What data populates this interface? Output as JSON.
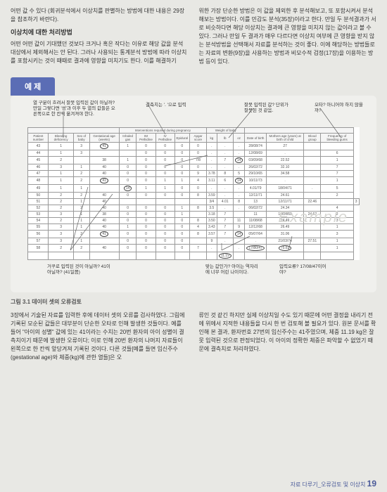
{
  "top": {
    "left_p1": "어떤 값 수 있다 (회귀분석에서 이상치를 판별하는 방법에 대한 내용은 29장을 참조하기 바란다).",
    "left_title": "이상치에 대한 처리방법",
    "left_p2": "어떤 어떤 값이 기대했던 것보다 크거나 혹은 작다는 이유로 해당 값을 분석 대상에서 제외해서는 안 된다. 그러나 사용되는 통계분석 방법에 따라 이상치를 포함시키는 것이 때때로 결과에 영향을 미치기도 한다. 이를 해결하기",
    "right_p1": "위한 가장 단순한 방법은 이 값을 제외한 후 분석해보고, 또 포함시켜서 분석해보는 방법이다. 이를 민감도 분석(35장)이라고 한다. 만일 두 분석결과가 서로 비슷하다면 해당 이상치는 결과에 큰 영향을 미치지 않는 값이라고 볼 수 있다. 그러나 만일 두 결과가 매우 다르다면 이상치 여부에 큰 영향을 받지 않는 분석방법을 선택해서 자료를 분석하는 것이 좋다. 이에 해당하는 방법들로는 자료의 변환(9장)을 사용하는 방법과 비모수적 검정(17장)을 이용하는 방법 등이 있다."
  },
  "example": {
    "tab": "예 제",
    "watermark": "Example",
    "annot1": "열 구분이 흐려서 잘못 입력된 값이 아닐까? 만일 그렇다면 '성'과 이후 두 열의 값들은 오른쪽으로 한 칸씩 옮겨져야 한다.",
    "annot2": "결측치는 '. '으로 입력",
    "annot3": "잘못 입력된 값? 단위가 잘못된 것 같음.",
    "annot4": "오타? 아니어야 하지 않을까?",
    "annot5": "거꾸로 입력된 것이 아닐까? 41이 아닐까? (41일쯤)",
    "annot6": "맞는 값인가? 아이는 역자리에 너무 어린 나이이다.",
    "annot7": "입력오류? 17/08/47이어야?",
    "table_header_group": "Interventions required during pregnancy",
    "table_header_group2": "Weight of baby",
    "columns": [
      "Patient number",
      "Bleeding deficiency",
      "Sex of baby",
      "Gestational age (weeks)",
      "Inhaled gas",
      "IM Pethidine",
      "IV Pethidine",
      "Epidural",
      "Apgar score",
      "kg",
      "lb",
      "oz",
      "Date of birth",
      "Mothers age (years) at birth of child",
      "Blood group",
      "Frequency of bleeding gums"
    ],
    "rows": [
      [
        "43",
        "1",
        "3",
        "41",
        "1",
        "0",
        "0",
        "0",
        "0",
        ".",
        ".",
        ".",
        "28/08/74",
        "27",
        "",
        ""
      ],
      [
        "44",
        "1",
        "3",
        "",
        "",
        "0",
        "0",
        "0",
        "0",
        ".",
        ".",
        ".",
        "12/08/69",
        ".",
        "",
        "6"
      ],
      [
        "45",
        "2",
        "",
        "38",
        "1",
        "0",
        "0",
        "0",
        "7/8",
        ".",
        "7",
        "14",
        "03/09/68",
        "22.52",
        "",
        "1"
      ],
      [
        "46",
        "3",
        "1",
        "40",
        "0",
        "0",
        "0",
        "0",
        "0",
        ".",
        ".",
        ".",
        "26/02/72",
        "32.10",
        "",
        "7"
      ],
      [
        "47",
        "1",
        "2",
        "40",
        "0",
        "0",
        "0",
        "0",
        "9",
        "3.78",
        "8",
        "5",
        "29/10/65",
        "34.58",
        "",
        "7"
      ],
      [
        "48",
        "1",
        "2",
        "41",
        "0",
        "0",
        "1",
        "1",
        "4",
        "3.11",
        "6",
        "14",
        "10/11/73",
        ".",
        "",
        "1"
      ],
      [
        "49",
        "1",
        "1",
        "",
        "14",
        "1",
        "1",
        "0",
        "0",
        ".",
        ".",
        ".",
        "4.01/79",
        "18/04/71",
        ".",
        "5"
      ],
      [
        "50",
        "2",
        "2",
        "40",
        "0",
        "0",
        "0",
        "0",
        "8",
        "3.59",
        ".",
        ".",
        "12/11/71",
        "24.61",
        "",
        "2"
      ],
      [
        "51",
        "2",
        "1",
        "40",
        "",
        "",
        "",
        "",
        "",
        "3/4",
        "4.01",
        "8",
        "13",
        "12/11/71",
        "22.46",
        "",
        "3"
      ],
      [
        "52",
        "2",
        "2",
        "40",
        "0",
        "0",
        "0",
        "1",
        "8",
        "3.5",
        ".",
        ".",
        "06/02/72",
        "24.34",
        "",
        "4"
      ],
      [
        "53",
        "3",
        "1",
        "38",
        "0",
        "0",
        "0",
        "1",
        "",
        "3.18",
        "7",
        "",
        "11",
        "10/04/69",
        "24.62",
        "2"
      ],
      [
        "54",
        "2",
        "1",
        "40",
        "0",
        "0",
        "0",
        "0",
        "8",
        "3.50",
        "7",
        "11",
        "11/08/68",
        "24.49",
        "",
        "3"
      ],
      [
        "55",
        "3",
        "1",
        "40",
        "1",
        "0",
        "0",
        "0",
        "4",
        "3.43",
        "7",
        "9",
        "12/12/68",
        "26.49",
        "",
        "1"
      ],
      [
        "56",
        "3",
        "2",
        "41",
        "0",
        "0",
        "0",
        "0",
        "8",
        "3.57",
        "7",
        "14",
        "05/07/64",
        "31.06",
        "",
        "3"
      ],
      [
        "57",
        "3",
        "1",
        "",
        "0",
        "0",
        "0",
        "0",
        "",
        "9",
        ".",
        ".",
        ".",
        "21/03/74",
        "27.51",
        "1"
      ],
      [
        "58",
        "2",
        "2",
        "40",
        "0",
        "0",
        "0",
        "0",
        "7",
        ".",
        ".",
        ".",
        "17/80/47",
        "75.63",
        "",
        "1"
      ],
      [
        "",
        "",
        "",
        "",
        "",
        "",
        "",
        "",
        "",
        "",
        "11.19",
        "",
        "",
        "",
        "",
        ""
      ]
    ],
    "caption": "그림 3.1 데이터 셋의 오류검토"
  },
  "bottom": {
    "left": "3장에서 기술된 자료를 입력한 후에 데이터 셋의 오류를 검사하였다. 그림에 기록된 모순된 값들은 대부분이 단순한 오타로 인해 발생한 것들이다. 예를 들어 \"아이의 성별\" 값에 있는 41이라는 수치는 20번 환자의 아이 성별이 결측치이기 때문에 발생한 오류이다; 이로 인해 20번 환자의 나머지 자료들이 왼쪽으로 한 칸씩 앞당겨져 기록된 것이다. 다른 것들[예를 들면 임신주수(gestational age)와 체중(kg)에 관한 열들]은 오",
    "right": "류인 것 같긴 하지만 실제 이상치일 수도 있기 때문에 어떤 결정을 내리기 전에 위에서 지적한 내용들을 다시 한 번 검토해 볼 필요가 있다. 원본 문서를 확인해 본 결과, 환자번호 27번의 임신주수는 41주였으며, 체중 11.19 kg은 잘못 입력된 것으로 판정되었다. 이 아이의 정확한 체중은 파악할 수 없었기 때문에 결측치로 처리하였다."
  },
  "footer": {
    "text": "자료 다루기_오류검토 및 이상치",
    "page": "19"
  }
}
